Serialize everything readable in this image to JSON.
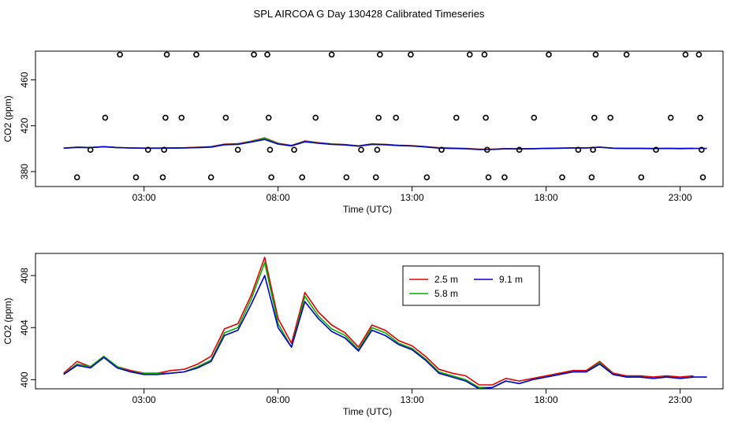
{
  "title": "SPL AIRCOA G  Day 130428  Calibrated Timeseries",
  "chart_data": [
    {
      "type": "scatter",
      "xlabel": "Time (UTC)",
      "ylabel": "CO2 (ppm)",
      "xlim": [
        -1.05,
        24.6
      ],
      "ylim": [
        367,
        485
      ],
      "xticks": [
        3,
        8,
        13,
        18,
        23
      ],
      "xtick_labels": [
        "03:00",
        "08:00",
        "13:00",
        "18:00",
        "23:00"
      ],
      "yticks": [
        380,
        420,
        460
      ],
      "ytick_labels": [
        "380",
        "420",
        "460"
      ],
      "flag_points": [
        {
          "x": 0.5,
          "y": 375
        },
        {
          "x": 1.0,
          "y": 399
        },
        {
          "x": 1.55,
          "y": 427
        },
        {
          "x": 2.1,
          "y": 482
        },
        {
          "x": 2.7,
          "y": 375
        },
        {
          "x": 3.15,
          "y": 399
        },
        {
          "x": 3.7,
          "y": 375
        },
        {
          "x": 3.75,
          "y": 399
        },
        {
          "x": 3.8,
          "y": 427
        },
        {
          "x": 3.85,
          "y": 482
        },
        {
          "x": 4.4,
          "y": 427
        },
        {
          "x": 4.95,
          "y": 482
        },
        {
          "x": 5.5,
          "y": 375
        },
        {
          "x": 6.05,
          "y": 427
        },
        {
          "x": 6.5,
          "y": 399
        },
        {
          "x": 7.1,
          "y": 482
        },
        {
          "x": 7.6,
          "y": 482
        },
        {
          "x": 7.65,
          "y": 427
        },
        {
          "x": 7.7,
          "y": 399
        },
        {
          "x": 7.75,
          "y": 375
        },
        {
          "x": 8.6,
          "y": 399
        },
        {
          "x": 8.9,
          "y": 375
        },
        {
          "x": 9.4,
          "y": 427
        },
        {
          "x": 10.0,
          "y": 482
        },
        {
          "x": 10.55,
          "y": 375
        },
        {
          "x": 11.1,
          "y": 399
        },
        {
          "x": 11.65,
          "y": 375
        },
        {
          "x": 11.7,
          "y": 399
        },
        {
          "x": 11.75,
          "y": 427
        },
        {
          "x": 11.8,
          "y": 482
        },
        {
          "x": 12.4,
          "y": 427
        },
        {
          "x": 12.95,
          "y": 482
        },
        {
          "x": 13.55,
          "y": 375
        },
        {
          "x": 14.1,
          "y": 399
        },
        {
          "x": 14.65,
          "y": 427
        },
        {
          "x": 15.15,
          "y": 482
        },
        {
          "x": 15.7,
          "y": 482
        },
        {
          "x": 15.75,
          "y": 427
        },
        {
          "x": 15.8,
          "y": 399
        },
        {
          "x": 15.85,
          "y": 375
        },
        {
          "x": 16.45,
          "y": 375
        },
        {
          "x": 17.0,
          "y": 399
        },
        {
          "x": 17.55,
          "y": 427
        },
        {
          "x": 18.1,
          "y": 482
        },
        {
          "x": 18.6,
          "y": 375
        },
        {
          "x": 19.2,
          "y": 399
        },
        {
          "x": 19.7,
          "y": 375
        },
        {
          "x": 19.75,
          "y": 399
        },
        {
          "x": 19.8,
          "y": 427
        },
        {
          "x": 19.85,
          "y": 482
        },
        {
          "x": 20.4,
          "y": 427
        },
        {
          "x": 21.0,
          "y": 482
        },
        {
          "x": 21.55,
          "y": 375
        },
        {
          "x": 22.1,
          "y": 399
        },
        {
          "x": 22.65,
          "y": 427
        },
        {
          "x": 23.2,
          "y": 482
        },
        {
          "x": 23.7,
          "y": 482
        },
        {
          "x": 23.75,
          "y": 427
        },
        {
          "x": 23.8,
          "y": 399
        },
        {
          "x": 23.85,
          "y": 375
        }
      ],
      "series": [
        {
          "name": "2.5 m",
          "color": "#e00000",
          "x": [
            0,
            0.5,
            1,
            1.5,
            2,
            2.5,
            3,
            3.5,
            4,
            4.5,
            5,
            5.5,
            6,
            6.5,
            7,
            7.5,
            8,
            8.5,
            9,
            9.5,
            10,
            10.5,
            11,
            11.5,
            12,
            12.5,
            13,
            13.5,
            14,
            14.5,
            15,
            15.5,
            16,
            16.5,
            17,
            17.5,
            18,
            18.5,
            19,
            19.5,
            20,
            20.5,
            21,
            21.5,
            22,
            22.5,
            23,
            23.5
          ],
          "values": [
            400.5,
            401.4,
            401.0,
            401.8,
            401.0,
            400.7,
            400.5,
            400.5,
            400.7,
            400.8,
            401.2,
            401.8,
            403.9,
            404.3,
            406.5,
            409.4,
            404.7,
            402.8,
            406.7,
            405.2,
            404.2,
            403.6,
            402.5,
            404.2,
            403.8,
            403.0,
            402.6,
            401.8,
            400.8,
            400.5,
            400.3,
            399.6,
            399.6,
            400.1,
            399.9,
            400.1,
            400.3,
            400.5,
            400.7,
            400.7,
            401.4,
            400.5,
            400.3,
            400.3,
            400.2,
            400.3,
            400.2,
            400.3
          ]
        },
        {
          "name": "5.8 m",
          "color": "#00b000",
          "x": [
            0,
            0.5,
            1,
            1.5,
            2,
            2.5,
            3,
            3.5,
            4,
            4.5,
            5,
            5.5,
            6,
            6.5,
            7,
            7.5,
            8,
            8.5,
            9,
            9.5,
            10,
            10.5,
            11,
            11.5,
            12,
            12.5,
            13,
            13.5,
            14,
            14.5,
            15,
            15.5,
            16,
            16.5,
            17,
            17.5,
            18,
            18.5,
            19,
            19.5,
            20,
            20.5,
            21,
            21.5,
            22,
            22.5,
            23,
            23.5
          ],
          "values": [
            400.4,
            401.2,
            401.0,
            401.8,
            401.0,
            400.6,
            400.5,
            400.5,
            400.5,
            400.6,
            401.0,
            401.5,
            403.6,
            404.0,
            406.2,
            409.0,
            404.3,
            402.5,
            406.4,
            404.9,
            403.9,
            403.4,
            402.3,
            404.0,
            403.6,
            402.8,
            402.4,
            401.6,
            400.6,
            400.3,
            400.0,
            399.4,
            399.4,
            399.9,
            399.7,
            400.0,
            400.2,
            400.4,
            400.6,
            400.6,
            401.3,
            400.4,
            400.2,
            400.2,
            400.1,
            400.2,
            400.1,
            400.2
          ]
        },
        {
          "name": "9.1 m",
          "color": "#0000cc",
          "x": [
            0,
            0.5,
            1,
            1.5,
            2,
            2.5,
            3,
            3.5,
            4,
            4.5,
            5,
            5.5,
            6,
            6.5,
            7,
            7.5,
            8,
            8.5,
            9,
            9.5,
            10,
            10.5,
            11,
            11.5,
            12,
            12.5,
            13,
            13.5,
            14,
            14.5,
            15,
            15.5,
            16,
            16.5,
            17,
            17.5,
            18,
            18.5,
            19,
            19.5,
            20,
            20.5,
            21,
            21.5,
            22,
            22.5,
            23,
            23.5,
            24
          ],
          "values": [
            400.4,
            401.1,
            400.9,
            401.7,
            400.9,
            400.6,
            400.4,
            400.4,
            400.5,
            400.6,
            400.9,
            401.4,
            403.4,
            403.8,
            405.8,
            408.0,
            404.0,
            402.5,
            406.0,
            404.7,
            403.7,
            403.2,
            402.2,
            403.8,
            403.4,
            402.7,
            402.3,
            401.5,
            400.5,
            400.2,
            399.9,
            399.3,
            399.4,
            399.9,
            399.7,
            400.0,
            400.2,
            400.4,
            400.6,
            400.6,
            401.2,
            400.4,
            400.2,
            400.2,
            400.1,
            400.2,
            400.1,
            400.2,
            400.2
          ]
        }
      ]
    },
    {
      "type": "line",
      "xlabel": "Time (UTC)",
      "ylabel": "CO2 (ppm)",
      "xlim": [
        -1.05,
        24.6
      ],
      "ylim": [
        399.3,
        409.7
      ],
      "xticks": [
        3,
        8,
        13,
        18,
        23
      ],
      "xtick_labels": [
        "03:00",
        "08:00",
        "13:00",
        "18:00",
        "23:00"
      ],
      "yticks": [
        400,
        404,
        408
      ],
      "ytick_labels": [
        "400",
        "404",
        "408"
      ],
      "legend": {
        "position": "top-center",
        "entries": [
          "2.5 m",
          "9.1 m",
          "5.8 m"
        ]
      },
      "series": [
        {
          "name": "2.5 m",
          "color": "#e00000",
          "x": [
            0,
            0.5,
            1,
            1.5,
            2,
            2.5,
            3,
            3.5,
            4,
            4.5,
            5,
            5.5,
            6,
            6.5,
            7,
            7.5,
            8,
            8.5,
            9,
            9.5,
            10,
            10.5,
            11,
            11.5,
            12,
            12.5,
            13,
            13.5,
            14,
            14.5,
            15,
            15.5,
            16,
            16.5,
            17,
            17.5,
            18,
            18.5,
            19,
            19.5,
            20,
            20.5,
            21,
            21.5,
            22,
            22.5,
            23,
            23.5
          ],
          "values": [
            400.5,
            401.4,
            401.0,
            401.8,
            401.0,
            400.7,
            400.5,
            400.5,
            400.7,
            400.8,
            401.2,
            401.8,
            403.9,
            404.3,
            406.5,
            409.4,
            404.7,
            402.8,
            406.7,
            405.2,
            404.2,
            403.6,
            402.5,
            404.2,
            403.8,
            403.0,
            402.6,
            401.8,
            400.8,
            400.5,
            400.3,
            399.6,
            399.6,
            400.1,
            399.9,
            400.1,
            400.3,
            400.5,
            400.7,
            400.7,
            401.4,
            400.5,
            400.3,
            400.3,
            400.2,
            400.3,
            400.2,
            400.3
          ]
        },
        {
          "name": "5.8 m",
          "color": "#00b000",
          "x": [
            0,
            0.5,
            1,
            1.5,
            2,
            2.5,
            3,
            3.5,
            4,
            4.5,
            5,
            5.5,
            6,
            6.5,
            7,
            7.5,
            8,
            8.5,
            9,
            9.5,
            10,
            10.5,
            11,
            11.5,
            12,
            12.5,
            13,
            13.5,
            14,
            14.5,
            15,
            15.5,
            16,
            16.5,
            17,
            17.5,
            18,
            18.5,
            19,
            19.5,
            20,
            20.5,
            21,
            21.5,
            22,
            22.5,
            23,
            23.5
          ],
          "values": [
            400.4,
            401.2,
            401.0,
            401.8,
            401.0,
            400.6,
            400.5,
            400.5,
            400.5,
            400.6,
            401.0,
            401.5,
            403.6,
            404.0,
            406.2,
            409.0,
            404.3,
            402.5,
            406.4,
            404.9,
            403.9,
            403.4,
            402.3,
            404.0,
            403.6,
            402.8,
            402.4,
            401.6,
            400.6,
            400.3,
            400.0,
            399.4,
            399.4,
            399.9,
            399.7,
            400.0,
            400.2,
            400.4,
            400.6,
            400.6,
            401.3,
            400.4,
            400.2,
            400.2,
            400.1,
            400.2,
            400.1,
            400.2
          ]
        },
        {
          "name": "9.1 m",
          "color": "#0000cc",
          "x": [
            0,
            0.5,
            1,
            1.5,
            2,
            2.5,
            3,
            3.5,
            4,
            4.5,
            5,
            5.5,
            6,
            6.5,
            7,
            7.5,
            8,
            8.5,
            9,
            9.5,
            10,
            10.5,
            11,
            11.5,
            12,
            12.5,
            13,
            13.5,
            14,
            14.5,
            15,
            15.5,
            16,
            16.5,
            17,
            17.5,
            18,
            18.5,
            19,
            19.5,
            20,
            20.5,
            21,
            21.5,
            22,
            22.5,
            23,
            23.5,
            24
          ],
          "values": [
            400.4,
            401.1,
            400.9,
            401.7,
            400.9,
            400.6,
            400.4,
            400.4,
            400.5,
            400.6,
            400.9,
            401.4,
            403.4,
            403.8,
            405.8,
            408.0,
            404.0,
            402.5,
            406.0,
            404.7,
            403.7,
            403.2,
            402.2,
            403.8,
            403.4,
            402.7,
            402.3,
            401.5,
            400.5,
            400.2,
            399.9,
            399.3,
            399.4,
            399.9,
            399.7,
            400.0,
            400.2,
            400.4,
            400.6,
            400.6,
            401.2,
            400.4,
            400.2,
            400.2,
            400.1,
            400.2,
            400.1,
            400.2,
            400.2
          ]
        }
      ]
    }
  ]
}
